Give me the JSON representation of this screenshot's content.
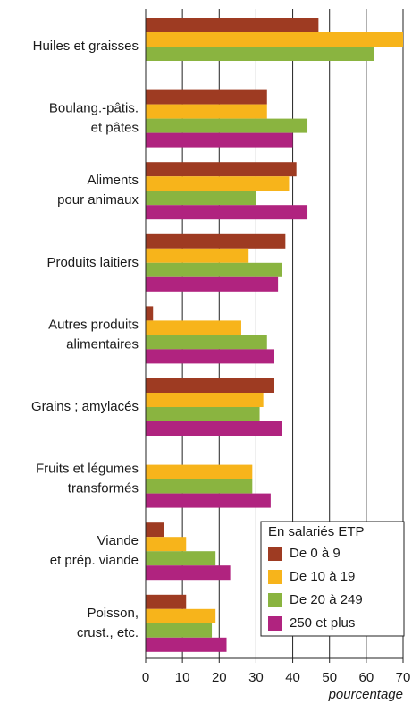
{
  "chart_data": {
    "type": "hbar",
    "categories": [
      [
        "Huiles et graisses"
      ],
      [
        "Boulang.-pâtis.",
        "et pâtes"
      ],
      [
        "Aliments",
        "pour animaux"
      ],
      [
        "Produits laitiers"
      ],
      [
        "Autres produits",
        "alimentaires"
      ],
      [
        "Grains ; amylacés"
      ],
      [
        "Fruits et légumes",
        "transformés"
      ],
      [
        "Viande",
        "et prép. viande"
      ],
      [
        "Poisson,",
        "crust., etc."
      ]
    ],
    "series": [
      {
        "name": "De 0 à 9",
        "color": "#9e3b22",
        "values": [
          47,
          33,
          41,
          38,
          2,
          35,
          null,
          5,
          11
        ]
      },
      {
        "name": "De 10 à 19",
        "color": "#f7b41b",
        "values": [
          70,
          33,
          39,
          28,
          26,
          32,
          29,
          11,
          19
        ]
      },
      {
        "name": "De 20 à 249",
        "color": "#8ab440",
        "values": [
          62,
          44,
          30,
          37,
          33,
          31,
          29,
          19,
          18
        ]
      },
      {
        "name": "250 et plus",
        "color": "#b0237f",
        "values": [
          null,
          40,
          44,
          36,
          35,
          37,
          34,
          23,
          22
        ]
      }
    ],
    "legend_title": "En salariés ETP",
    "x_label": "pourcentage",
    "xlim": [
      0,
      70
    ],
    "xticks": [
      0,
      10,
      20,
      30,
      40,
      50,
      60,
      70
    ],
    "grid": true,
    "legend": "lower right"
  }
}
